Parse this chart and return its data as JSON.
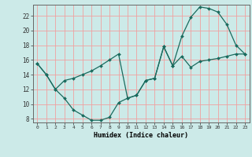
{
  "xlabel": "Humidex (Indice chaleur)",
  "background_color": "#cceae8",
  "grid_color": "#f0a0a0",
  "line_color": "#1a6b5e",
  "xlim": [
    -0.5,
    23.5
  ],
  "ylim": [
    7.5,
    23.5
  ],
  "yticks": [
    8,
    10,
    12,
    14,
    16,
    18,
    20,
    22
  ],
  "xticks": [
    0,
    1,
    2,
    3,
    4,
    5,
    6,
    7,
    8,
    9,
    10,
    11,
    12,
    13,
    14,
    15,
    16,
    17,
    18,
    19,
    20,
    21,
    22,
    23
  ],
  "line1_x": [
    0,
    1,
    2,
    3,
    4,
    5,
    6,
    7,
    8,
    9,
    10,
    11,
    12,
    13,
    14,
    15,
    16,
    17,
    18,
    19,
    20,
    21,
    22,
    23
  ],
  "line1_y": [
    15.5,
    14.0,
    12.0,
    13.2,
    13.5,
    14.0,
    14.5,
    15.2,
    16.0,
    16.8,
    10.8,
    11.2,
    13.2,
    13.5,
    17.8,
    15.2,
    16.5,
    15.0,
    15.8,
    16.0,
    16.2,
    16.5,
    16.8,
    16.8
  ],
  "line2_x": [
    0,
    1,
    2,
    3,
    4,
    5,
    6,
    7,
    8,
    9,
    10,
    11,
    12,
    13,
    14,
    15,
    16,
    17,
    18,
    19,
    20,
    21,
    22,
    23
  ],
  "line2_y": [
    15.5,
    14.0,
    12.0,
    10.8,
    9.2,
    8.5,
    7.8,
    7.8,
    8.2,
    10.2,
    10.8,
    11.2,
    13.2,
    13.5,
    17.8,
    15.2,
    19.2,
    21.8,
    23.2,
    23.0,
    22.5,
    20.8,
    18.0,
    16.8
  ]
}
